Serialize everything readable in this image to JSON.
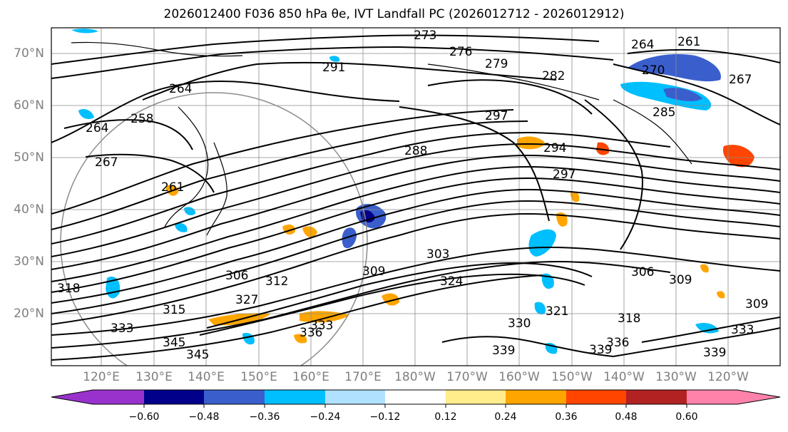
{
  "title": "2026012400 F036 850 hPa θe, IVT Landfall PC (2026012712 - 2026012912)",
  "lat_labels": [
    "70°N",
    "60°N",
    "50°N",
    "40°N",
    "30°N",
    "20°N"
  ],
  "lon_labels": [
    "120°E",
    "130°E",
    "140°E",
    "150°E",
    "160°E",
    "170°E",
    "180°W",
    "170°W",
    "160°W",
    "150°W",
    "140°W",
    "130°W",
    "120°W"
  ],
  "colorbar": {
    "ticks": [
      "−0.60",
      "−0.48",
      "−0.36",
      "−0.24",
      "−0.12",
      "0.12",
      "0.24",
      "0.36",
      "0.48",
      "0.60"
    ],
    "colors": [
      "#9932cc",
      "#00008b",
      "#3a5fcd",
      "#00bfff",
      "#b0e2ff",
      "#ffffff",
      "#ffec8b",
      "#ffa500",
      "#ff4500",
      "#b22222",
      "#ff82ab"
    ]
  },
  "contour_labels": [
    "273",
    "276",
    "279",
    "264",
    "261",
    "267",
    "270",
    "282",
    "285",
    "291",
    "297",
    "294",
    "288",
    "297",
    "264",
    "258",
    "264",
    "267",
    "261",
    "303",
    "306",
    "312",
    "318",
    "324",
    "309",
    "315",
    "306",
    "309",
    "309",
    "318",
    "321",
    "330",
    "333",
    "336",
    "339",
    "336",
    "339",
    "345",
    "333",
    "339",
    "327",
    "333",
    "345"
  ]
}
